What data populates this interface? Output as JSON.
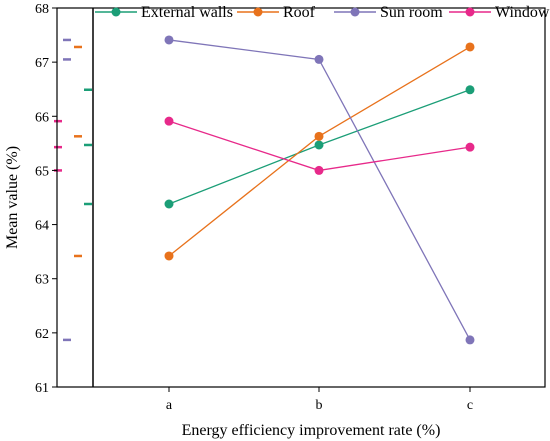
{
  "chart_data": {
    "type": "line",
    "title": "",
    "xlabel": "Energy efficiency improvement rate (%)",
    "ylabel": "Mean value (%)",
    "categories": [
      "a",
      "b",
      "c"
    ],
    "ylim": [
      61,
      68
    ],
    "yticks": [
      61,
      62,
      63,
      64,
      65,
      66,
      67,
      68
    ],
    "legend_position": "top",
    "grid": false,
    "series": [
      {
        "name": "External walls",
        "color": "#1b9e77",
        "values": [
          64.38,
          65.47,
          66.49
        ]
      },
      {
        "name": "Roof",
        "color": "#e8721c",
        "values": [
          63.42,
          65.63,
          67.28
        ]
      },
      {
        "name": "Sun room",
        "color": "#7f75b8",
        "values": [
          67.41,
          67.05,
          61.87
        ]
      },
      {
        "name": "Windows",
        "color": "#e7298a",
        "values": [
          65.91,
          65.0,
          65.43
        ]
      }
    ]
  }
}
